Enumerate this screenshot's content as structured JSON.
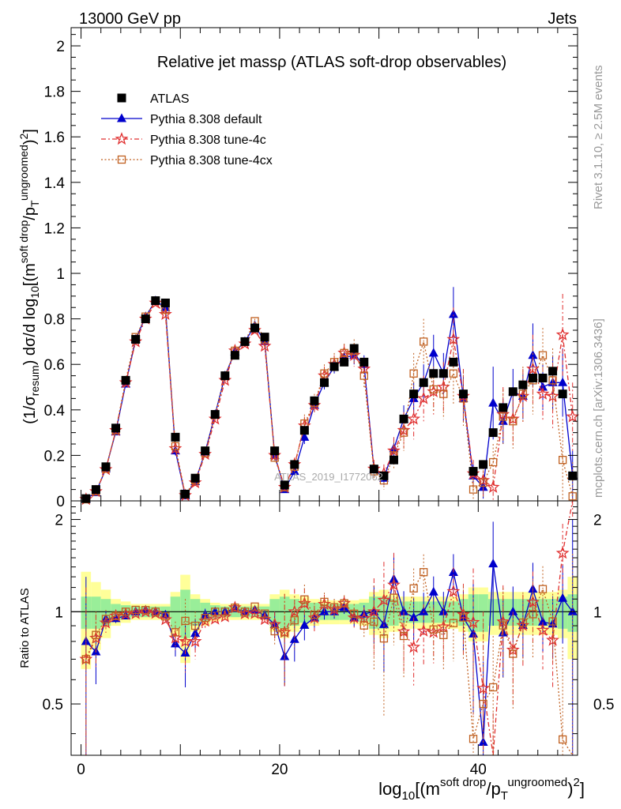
{
  "header": {
    "left": "13000 GeV pp",
    "right": "Jets"
  },
  "side_labels": {
    "rivet": "Rivet 3.1.10, ≥ 2.5M events",
    "mcplots": "mcplots.cern.ch [arXiv:1306.3436]"
  },
  "watermark": "ATLAS_2019_I1772062",
  "ratio_ylabel": "Ratio to ATLAS",
  "chart_data": {
    "type": "scatter",
    "title": "Relative jet massρ (ATLAS soft-drop observables)",
    "ylabel": "(1/σresum) dσ/d log10[(m^soft drop/pT^ungroomed)^2]",
    "xlabel": "log10[(m^soft drop/pT^ungroomed)^2]",
    "xlim": [
      -1,
      50
    ],
    "ylim": [
      0,
      2.08
    ],
    "ratio_ylim": [
      0.34,
      2.3
    ],
    "xticks": [
      0,
      20,
      40
    ],
    "yticks": [
      0,
      0.2,
      0.4,
      0.6,
      0.8,
      1,
      1.2,
      1.4,
      1.6,
      1.8,
      2
    ],
    "ytick_labels": [
      "0",
      "0.2",
      "0.4",
      "0.6",
      "0.8",
      "1",
      "1.2",
      "1.4",
      "1.6",
      "1.8",
      "2"
    ],
    "ratio_yticks": [
      0.5,
      1,
      2
    ],
    "ratio_ytick_labels": [
      "0.5",
      "1",
      "2"
    ],
    "legend_position": "top-left",
    "x": [
      0.5,
      1.5,
      2.5,
      3.5,
      4.5,
      5.5,
      6.5,
      7.5,
      8.5,
      9.5,
      10.5,
      11.5,
      12.5,
      13.5,
      14.5,
      15.5,
      16.5,
      17.5,
      18.5,
      19.5,
      20.5,
      21.5,
      22.5,
      23.5,
      24.5,
      25.5,
      26.5,
      27.5,
      28.5,
      29.5,
      30.5,
      31.5,
      32.5,
      33.5,
      34.5,
      35.5,
      36.5,
      37.5,
      38.5,
      39.5,
      40.5,
      41.5,
      42.5,
      43.5,
      44.5,
      45.5,
      46.5,
      47.5,
      48.5,
      49.5
    ],
    "series": [
      {
        "name": "ATLAS",
        "color": "#000000",
        "marker": "square",
        "values": [
          0.01,
          0.05,
          0.15,
          0.32,
          0.53,
          0.71,
          0.8,
          0.88,
          0.87,
          0.28,
          0.03,
          0.1,
          0.22,
          0.38,
          0.55,
          0.64,
          0.7,
          0.76,
          0.72,
          0.22,
          0.07,
          0.16,
          0.31,
          0.44,
          0.52,
          0.59,
          0.61,
          0.67,
          0.61,
          0.14,
          0.11,
          0.18,
          0.36,
          0.47,
          0.52,
          0.56,
          0.56,
          0.61,
          0.47,
          0.13,
          0.16,
          0.3,
          0.41,
          0.48,
          0.51,
          0.54,
          0.54,
          0.57,
          0.47,
          0.11
        ],
        "band_inner": [
          0.12,
          0.12,
          0.1,
          0.06,
          0.05,
          0.04,
          0.04,
          0.04,
          0.04,
          0.12,
          0.18,
          0.1,
          0.07,
          0.05,
          0.04,
          0.04,
          0.04,
          0.04,
          0.04,
          0.1,
          0.12,
          0.1,
          0.08,
          0.07,
          0.06,
          0.06,
          0.06,
          0.06,
          0.07,
          0.12,
          0.12,
          0.1,
          0.08,
          0.08,
          0.08,
          0.08,
          0.08,
          0.08,
          0.1,
          0.14,
          0.14,
          0.1,
          0.1,
          0.1,
          0.1,
          0.1,
          0.1,
          0.1,
          0.12,
          0.14
        ],
        "band_outer": [
          0.35,
          0.25,
          0.18,
          0.1,
          0.08,
          0.06,
          0.06,
          0.06,
          0.06,
          0.16,
          0.32,
          0.14,
          0.1,
          0.07,
          0.06,
          0.06,
          0.06,
          0.06,
          0.06,
          0.14,
          0.18,
          0.14,
          0.12,
          0.1,
          0.09,
          0.09,
          0.09,
          0.09,
          0.1,
          0.16,
          0.18,
          0.14,
          0.12,
          0.12,
          0.12,
          0.12,
          0.12,
          0.12,
          0.14,
          0.2,
          0.2,
          0.16,
          0.16,
          0.16,
          0.16,
          0.16,
          0.16,
          0.16,
          0.18,
          0.3
        ]
      },
      {
        "name": "Pythia 8.308 default",
        "color": "#0000cc",
        "marker": "triangle",
        "values": [
          0.008,
          0.037,
          0.142,
          0.304,
          0.514,
          0.71,
          0.81,
          0.88,
          0.85,
          0.22,
          0.022,
          0.085,
          0.215,
          0.38,
          0.55,
          0.655,
          0.7,
          0.77,
          0.7,
          0.2,
          0.05,
          0.13,
          0.28,
          0.42,
          0.52,
          0.59,
          0.63,
          0.64,
          0.6,
          0.14,
          0.1,
          0.23,
          0.36,
          0.45,
          0.52,
          0.65,
          0.56,
          0.82,
          0.45,
          0.11,
          0.06,
          0.43,
          0.35,
          0.48,
          0.46,
          0.64,
          0.5,
          0.52,
          0.52,
          0.11
        ],
        "err": [
          0.005,
          0.008,
          0.01,
          0.01,
          0.01,
          0.01,
          0.01,
          0.01,
          0.01,
          0.02,
          0.005,
          0.01,
          0.01,
          0.01,
          0.01,
          0.01,
          0.01,
          0.01,
          0.01,
          0.02,
          0.01,
          0.02,
          0.03,
          0.03,
          0.03,
          0.03,
          0.03,
          0.04,
          0.04,
          0.03,
          0.03,
          0.05,
          0.06,
          0.07,
          0.08,
          0.08,
          0.09,
          0.12,
          0.1,
          0.05,
          0.05,
          0.16,
          0.1,
          0.1,
          0.1,
          0.14,
          0.1,
          0.12,
          0.15,
          0.11
        ]
      },
      {
        "name": "Pythia 8.308 tune-4c",
        "color": "#e03030",
        "marker": "star",
        "values": [
          0.007,
          0.041,
          0.138,
          0.31,
          0.52,
          0.7,
          0.8,
          0.87,
          0.82,
          0.23,
          0.024,
          0.08,
          0.205,
          0.36,
          0.53,
          0.66,
          0.69,
          0.75,
          0.68,
          0.2,
          0.06,
          0.16,
          0.33,
          0.42,
          0.55,
          0.6,
          0.65,
          0.64,
          0.58,
          0.14,
          0.12,
          0.22,
          0.31,
          0.36,
          0.45,
          0.48,
          0.5,
          0.71,
          0.46,
          0.12,
          0.09,
          0.06,
          0.38,
          0.36,
          0.46,
          0.58,
          0.47,
          0.46,
          0.73,
          0.37
        ],
        "err": [
          0.005,
          0.008,
          0.01,
          0.01,
          0.01,
          0.01,
          0.01,
          0.01,
          0.01,
          0.02,
          0.005,
          0.01,
          0.01,
          0.01,
          0.01,
          0.01,
          0.01,
          0.01,
          0.01,
          0.02,
          0.02,
          0.03,
          0.04,
          0.04,
          0.04,
          0.04,
          0.04,
          0.05,
          0.05,
          0.04,
          0.04,
          0.06,
          0.08,
          0.09,
          0.1,
          0.1,
          0.11,
          0.14,
          0.12,
          0.06,
          0.07,
          0.08,
          0.12,
          0.12,
          0.12,
          0.15,
          0.12,
          0.14,
          0.18,
          0.15
        ]
      },
      {
        "name": "Pythia 8.308 tune-4cx",
        "color": "#c06020",
        "marker": "open-square",
        "values": [
          0.007,
          0.042,
          0.142,
          0.31,
          0.53,
          0.72,
          0.81,
          0.88,
          0.84,
          0.24,
          0.028,
          0.09,
          0.21,
          0.38,
          0.55,
          0.66,
          0.7,
          0.79,
          0.71,
          0.19,
          0.06,
          0.15,
          0.34,
          0.43,
          0.56,
          0.61,
          0.65,
          0.66,
          0.55,
          0.13,
          0.09,
          0.2,
          0.3,
          0.56,
          0.7,
          0.49,
          0.47,
          0.56,
          0.45,
          0.05,
          0.08,
          0.17,
          0.37,
          0.35,
          0.47,
          0.53,
          0.64,
          0.53,
          0.18,
          0.02
        ],
        "err": [
          0.005,
          0.008,
          0.01,
          0.01,
          0.01,
          0.01,
          0.01,
          0.01,
          0.01,
          0.02,
          0.005,
          0.01,
          0.01,
          0.01,
          0.01,
          0.01,
          0.01,
          0.01,
          0.01,
          0.02,
          0.02,
          0.03,
          0.04,
          0.04,
          0.04,
          0.04,
          0.04,
          0.05,
          0.05,
          0.04,
          0.04,
          0.06,
          0.08,
          0.09,
          0.1,
          0.1,
          0.11,
          0.14,
          0.12,
          0.06,
          0.07,
          0.08,
          0.12,
          0.12,
          0.12,
          0.15,
          0.12,
          0.14,
          0.18,
          0.15
        ]
      }
    ]
  }
}
